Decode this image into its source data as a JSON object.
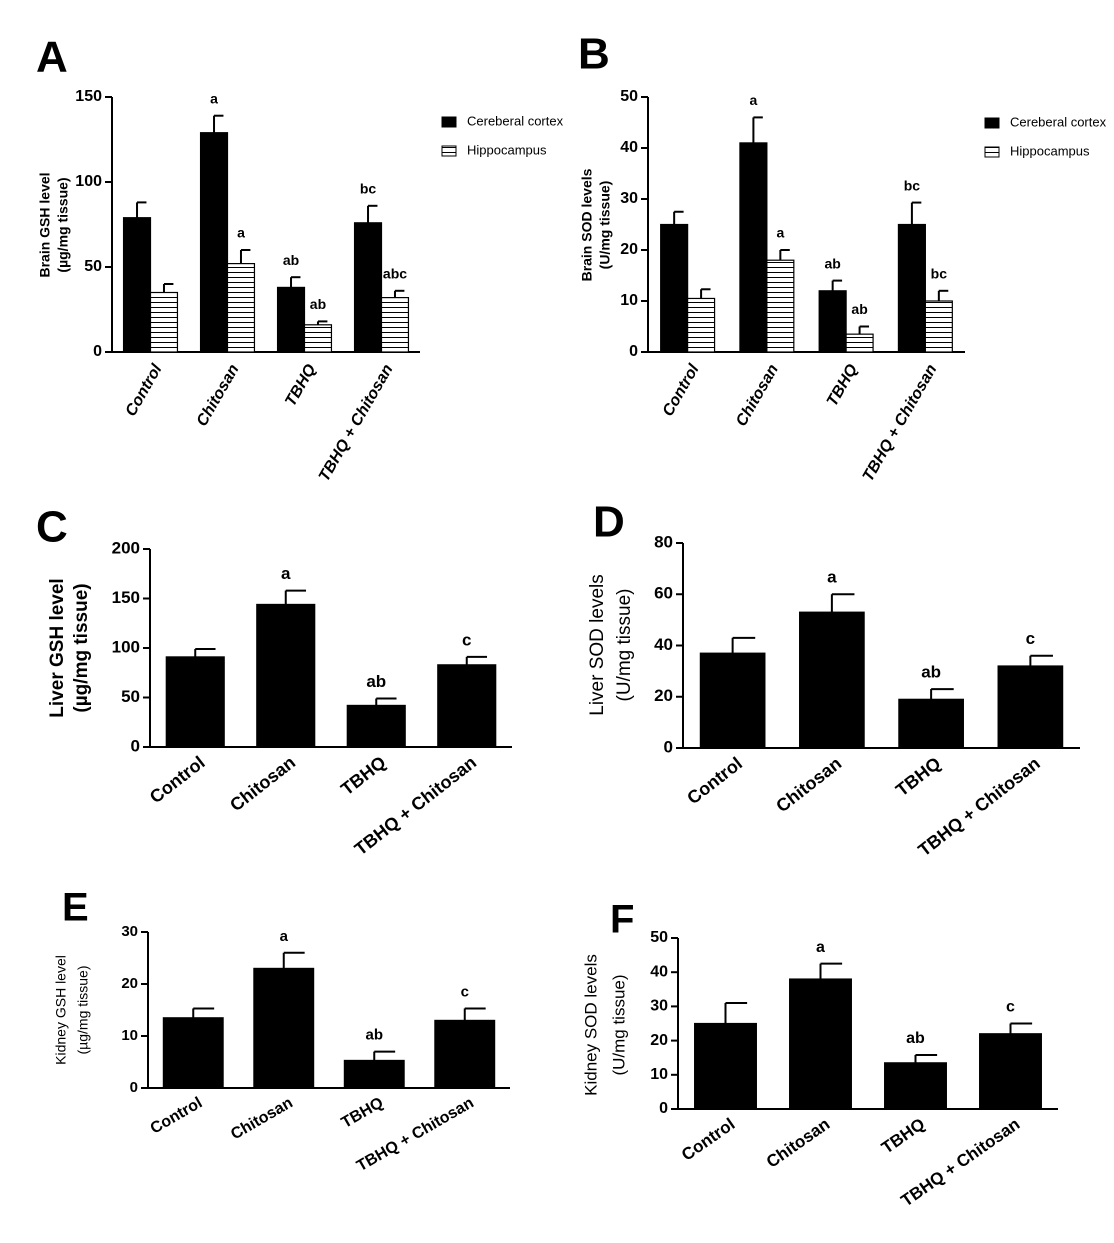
{
  "chart_data": [
    {
      "type": "bar",
      "panel": "A",
      "ylabel": [
        "Brain GSH level",
        "(µg/mg tissue)"
      ],
      "categories": [
        "Control",
        "Chitosan",
        "TBHQ",
        "TBHQ + Chitosan"
      ],
      "series": [
        {
          "name": "Cereberal cortex",
          "color": "#000000",
          "values": [
            79,
            129,
            38,
            76
          ],
          "errors": [
            9,
            10,
            6,
            10
          ],
          "sig_labels": [
            null,
            "a",
            "ab",
            "bc"
          ]
        },
        {
          "name": "Hippocampus",
          "color": "#ffffff",
          "hatch": "horizontal",
          "values": [
            35,
            52,
            16,
            32
          ],
          "errors": [
            5,
            8,
            2,
            4
          ],
          "sig_labels": [
            null,
            "a",
            "ab",
            "abc"
          ]
        }
      ],
      "ylim": [
        0,
        150
      ],
      "yticks": [
        0,
        50,
        100,
        150
      ],
      "grid": false
    },
    {
      "type": "bar",
      "panel": "B",
      "ylabel": [
        "Brain SOD levels",
        "(U/mg tissue)"
      ],
      "categories": [
        "Control",
        "Chitosan",
        "TBHQ",
        "TBHQ + Chitosan"
      ],
      "series": [
        {
          "name": "Cereberal cortex",
          "color": "#000000",
          "values": [
            25,
            41,
            12,
            25
          ],
          "errors": [
            2.5,
            5,
            2,
            4.3
          ],
          "sig_labels": [
            null,
            "a",
            "ab",
            "bc"
          ]
        },
        {
          "name": "Hippocampus",
          "color": "#ffffff",
          "hatch": "horizontal",
          "values": [
            10.5,
            18,
            3.5,
            10
          ],
          "errors": [
            1.8,
            2,
            1.5,
            2
          ],
          "sig_labels": [
            null,
            "a",
            "ab",
            "bc"
          ]
        }
      ],
      "ylim": [
        0,
        50
      ],
      "yticks": [
        0,
        10,
        20,
        30,
        40,
        50
      ],
      "grid": false
    },
    {
      "type": "bar",
      "panel": "C",
      "ylabel": [
        "Liver GSH level",
        "(µg/mg tissue)"
      ],
      "categories": [
        "Control",
        "Chitosan",
        "TBHQ",
        "TBHQ + Chitosan"
      ],
      "color": "#000000",
      "values": [
        91,
        144,
        42,
        83
      ],
      "errors": [
        8,
        14,
        7,
        8
      ],
      "sig_labels": [
        null,
        "a",
        "ab",
        "c"
      ],
      "ylim": [
        0,
        200
      ],
      "yticks": [
        0,
        50,
        100,
        150,
        200
      ],
      "grid": false
    },
    {
      "type": "bar",
      "panel": "D",
      "ylabel": [
        "Liver SOD levels",
        "(U/mg tissue)"
      ],
      "categories": [
        "Control",
        "Chitosan",
        "TBHQ",
        "TBHQ + Chitosan"
      ],
      "color": "#000000",
      "values": [
        37,
        53,
        19,
        32
      ],
      "errors": [
        6,
        7,
        4,
        4
      ],
      "sig_labels": [
        null,
        "a",
        "ab",
        "c"
      ],
      "ylim": [
        0,
        80
      ],
      "yticks": [
        0,
        20,
        40,
        60,
        80
      ],
      "grid": false
    },
    {
      "type": "bar",
      "panel": "E",
      "ylabel": [
        "Kidney GSH level",
        "(µg/mg tissue)"
      ],
      "categories": [
        "Control",
        "Chitosan",
        "TBHQ",
        "TBHQ + Chitosan"
      ],
      "color": "#000000",
      "values": [
        13.5,
        23,
        5.3,
        13
      ],
      "errors": [
        1.8,
        3,
        1.7,
        2.3
      ],
      "sig_labels": [
        null,
        "a",
        "ab",
        "c"
      ],
      "ylim": [
        0,
        30
      ],
      "yticks": [
        0,
        10,
        20,
        30
      ],
      "grid": false
    },
    {
      "type": "bar",
      "panel": "F",
      "ylabel": [
        "Kidney SOD levels",
        "(U/mg tissue)"
      ],
      "categories": [
        "Control",
        "Chitosan",
        "TBHQ",
        "TBHQ + Chitosan"
      ],
      "color": "#000000",
      "values": [
        25,
        38,
        13.5,
        22
      ],
      "errors": [
        6,
        4.5,
        2.3,
        3
      ],
      "sig_labels": [
        null,
        "a",
        "ab",
        "c"
      ],
      "ylim": [
        0,
        50
      ],
      "yticks": [
        0,
        10,
        20,
        30,
        40,
        50
      ],
      "grid": false
    }
  ]
}
